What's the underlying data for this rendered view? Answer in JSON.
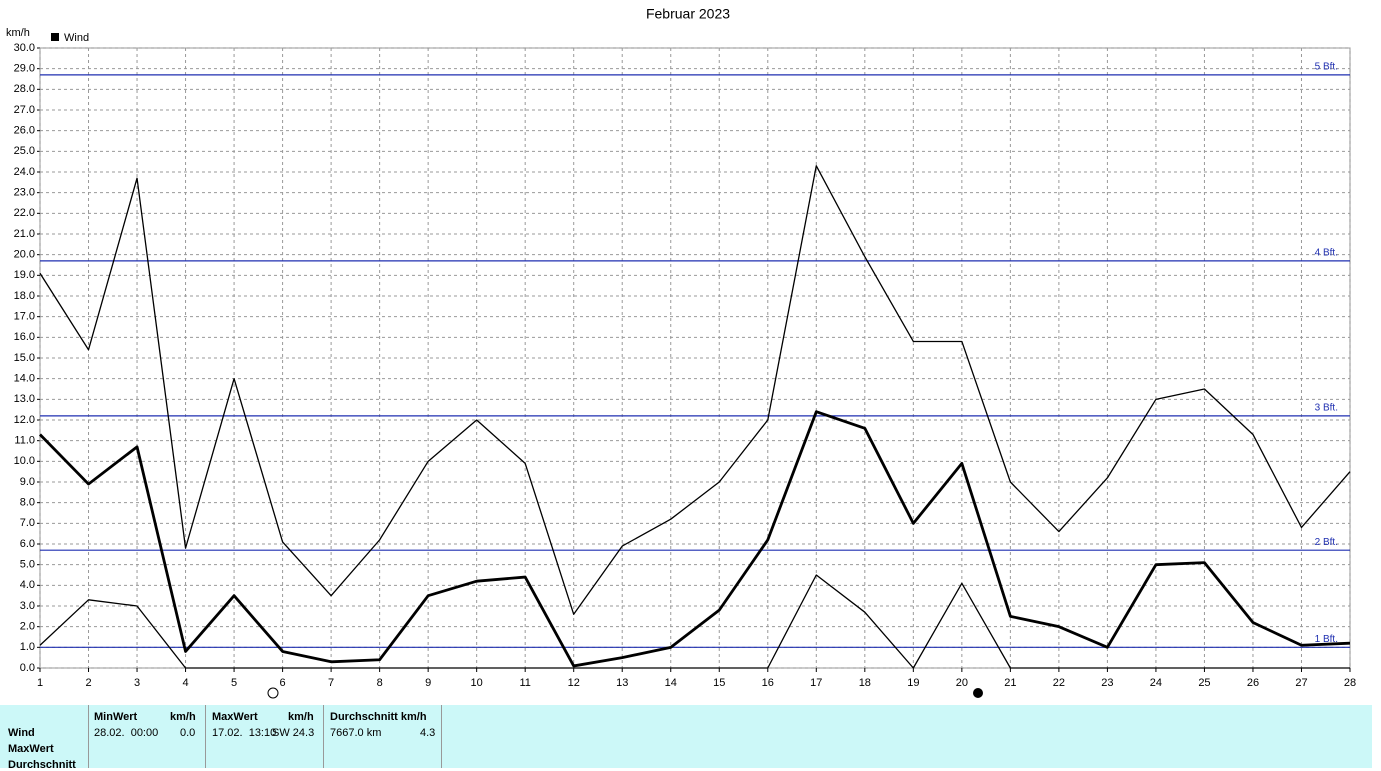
{
  "chart_data": {
    "type": "line",
    "title": "Februar 2023",
    "y_unit": "km/h",
    "legend": "Wind",
    "x": [
      1,
      2,
      3,
      4,
      5,
      6,
      7,
      8,
      9,
      10,
      11,
      12,
      13,
      14,
      15,
      16,
      17,
      18,
      19,
      20,
      21,
      22,
      23,
      24,
      25,
      26,
      27,
      28
    ],
    "xlim": [
      1,
      28
    ],
    "xticks": [
      1,
      2,
      3,
      4,
      5,
      6,
      7,
      8,
      9,
      10,
      11,
      12,
      13,
      14,
      15,
      16,
      17,
      18,
      19,
      20,
      21,
      22,
      23,
      24,
      25,
      26,
      27,
      28
    ],
    "ylim": [
      0,
      30
    ],
    "yticks": [
      {
        "value": 0,
        "label": "0.0"
      },
      {
        "value": 1,
        "label": "1.0"
      },
      {
        "value": 2,
        "label": "2.0"
      },
      {
        "value": 3,
        "label": "3.0"
      },
      {
        "value": 4,
        "label": "4.0"
      },
      {
        "value": 5,
        "label": "5.0"
      },
      {
        "value": 6,
        "label": "6.0"
      },
      {
        "value": 7,
        "label": "7.0"
      },
      {
        "value": 8,
        "label": "8.0"
      },
      {
        "value": 9,
        "label": "9.0"
      },
      {
        "value": 10,
        "label": "10.0"
      },
      {
        "value": 11,
        "label": "11.0"
      },
      {
        "value": 12,
        "label": "12.0"
      },
      {
        "value": 13,
        "label": "13.0"
      },
      {
        "value": 14,
        "label": "14.0"
      },
      {
        "value": 15,
        "label": "15.0"
      },
      {
        "value": 16,
        "label": "16.0"
      },
      {
        "value": 17,
        "label": "17.0"
      },
      {
        "value": 18,
        "label": "18.0"
      },
      {
        "value": 19,
        "label": "19.0"
      },
      {
        "value": 20,
        "label": "20.0"
      },
      {
        "value": 21,
        "label": "21.0"
      },
      {
        "value": 22,
        "label": "22.0"
      },
      {
        "value": 23,
        "label": "23.0"
      },
      {
        "value": 24,
        "label": "24.0"
      },
      {
        "value": 25,
        "label": "25.0"
      },
      {
        "value": 26,
        "label": "26.0"
      },
      {
        "value": 27,
        "label": "27.0"
      },
      {
        "value": 28,
        "label": "28.0"
      },
      {
        "value": 29,
        "label": "29.0"
      },
      {
        "value": 30,
        "label": "30.0"
      }
    ],
    "grid": true,
    "series": [
      {
        "color": "#000000",
        "values": [
          19.1,
          15.4,
          23.7,
          5.8,
          14.0,
          6.1,
          3.5,
          6.2,
          10.0,
          12.0,
          9.9,
          2.6,
          5.9,
          7.2,
          9.0,
          12.0,
          24.3,
          19.9,
          15.8,
          15.8,
          9.0,
          6.6,
          9.2,
          13.0,
          13.5,
          11.3,
          6.8,
          9.5
        ]
      },
      {
        "color": "#000000",
        "values": [
          11.3,
          8.9,
          10.7,
          0.8,
          3.5,
          0.8,
          0.3,
          0.4,
          3.5,
          4.2,
          4.4,
          0.1,
          0.5,
          1.0,
          2.8,
          6.2,
          12.4,
          11.6,
          7.0,
          9.9,
          2.5,
          2.0,
          1.0,
          5.0,
          5.1,
          2.2,
          1.1,
          1.2
        ]
      },
      {
        "color": "#000000",
        "values": [
          1.1,
          3.3,
          3.0,
          0.0,
          0.0,
          0.0,
          0.0,
          0.0,
          0.0,
          0.0,
          0.0,
          0.0,
          0.0,
          0.0,
          0.0,
          0.0,
          4.5,
          2.7,
          0.0,
          4.1,
          0.0,
          0.0,
          0.0,
          0.0,
          0.0,
          0.0,
          0.0,
          0.0
        ]
      }
    ],
    "reference_lines": [
      {
        "label": "1 Bft.",
        "value": 1.0,
        "color": "#1f2fb0"
      },
      {
        "label": "2 Bft.",
        "value": 5.7,
        "color": "#1f2fb0"
      },
      {
        "label": "3 Bft.",
        "value": 12.2,
        "color": "#1f2fb0"
      },
      {
        "label": "4 Bft.",
        "value": 19.7,
        "color": "#1f2fb0"
      },
      {
        "label": "5 Bft.",
        "value": 28.7,
        "color": "#1f2fb0"
      }
    ]
  },
  "table": {
    "headers": [
      "MinWert",
      "km/h",
      "MaxWert",
      "km/h",
      "Durchschnitt km/h"
    ],
    "row_labels": [
      "Wind",
      "MaxWert",
      "Durchschnitt"
    ],
    "values": [
      "28.02.  00:00",
      "0.0",
      "17.02.  13:10",
      "SW 24.3",
      "7667.0 km",
      "4.3"
    ]
  }
}
